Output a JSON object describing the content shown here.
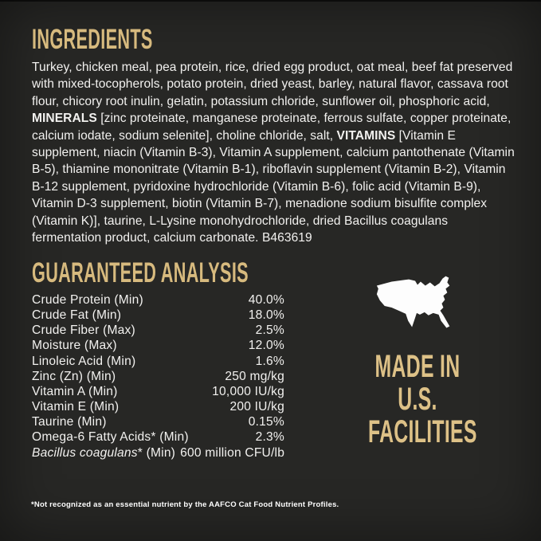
{
  "colors": {
    "background": "#272725",
    "heading_gold": "#d7ba7e",
    "made_in_gold": "#ddc187",
    "body_text": "#f2f1ef",
    "map_white": "#fdfdfd"
  },
  "ingredients": {
    "heading": "INGREDIENTS",
    "segments": [
      {
        "text": "Turkey, chicken meal, pea protein, rice, dried egg product, oat meal, beef fat preserved with mixed-tocopherols, potato protein, dried yeast, barley, natural flavor, cassava root flour, chicory root inulin, gelatin, potassium chloride, sunflower oil, phosphoric acid, ",
        "bold": false
      },
      {
        "text": "MINERALS",
        "bold": true
      },
      {
        "text": " [zinc proteinate, manganese proteinate, ferrous sulfate, copper proteinate, calcium iodate, sodium selenite], choline chloride, salt, ",
        "bold": false
      },
      {
        "text": "VITAMINS",
        "bold": true
      },
      {
        "text": " [Vitamin E supplement, niacin (Vitamin B-3), Vitamin A supplement, calcium pantothenate (Vitamin B-5), thiamine mononitrate (Vitamin B-1), riboflavin supplement (Vitamin B-2), Vitamin B-12 supplement, pyridoxine hydrochloride (Vitamin B-6), folic acid (Vitamin B-9), Vitamin D-3 supplement, biotin (Vitamin B-7), menadione sodium bisulfite complex (Vitamin K)], taurine, L-Lysine monohydrochloride, dried Bacillus coagulans fermentation product, calcium carbonate. B463619",
        "bold": false
      }
    ]
  },
  "guaranteed_analysis": {
    "heading": "GUARANTEED ANALYSIS",
    "rows": [
      {
        "label": "Crude Protein (Min)",
        "value": "40.0%"
      },
      {
        "label": "Crude Fat (Min)",
        "value": "18.0%"
      },
      {
        "label": "Crude Fiber (Max)",
        "value": "2.5%"
      },
      {
        "label": "Moisture (Max)",
        "value": "12.0%"
      },
      {
        "label": "Linoleic Acid (Min)",
        "value": "1.6%"
      },
      {
        "label": "Zinc (Zn) (Min)",
        "value": "250 mg/kg"
      },
      {
        "label": "Vitamin A (Min)",
        "value": "10,000 IU/kg"
      },
      {
        "label": "Vitamin E (Min)",
        "value": "200 IU/kg"
      },
      {
        "label": "Taurine (Min)",
        "value": "0.15%"
      },
      {
        "label": "Omega-6 Fatty Acids* (Min)",
        "value": "2.3%"
      },
      {
        "label": "Bacillus coagulans* (Min)",
        "label_italic": "Bacillus coagulans",
        "label_rest": "* (Min)",
        "value": "600 million CFU/lb"
      }
    ]
  },
  "made_in": {
    "map_icon": "usa-map-silhouette",
    "lines": [
      "MADE IN",
      "U.S.",
      "FACILITIES"
    ]
  },
  "footnote": "*Not recognized as an essential nutrient by the AAFCO Cat Food Nutrient Profiles."
}
